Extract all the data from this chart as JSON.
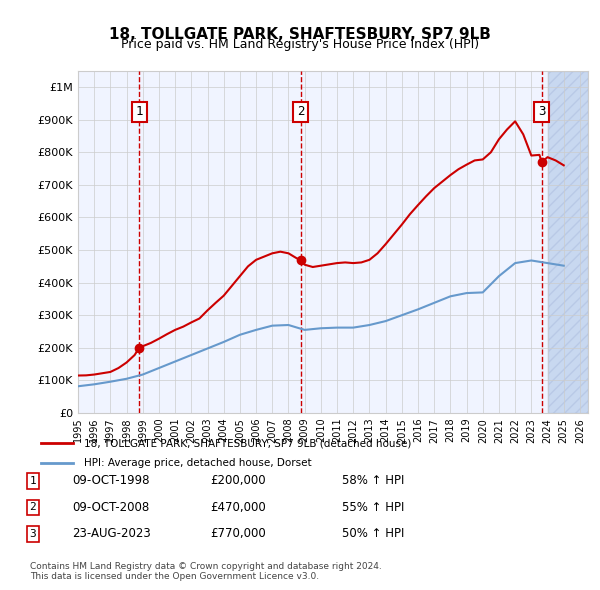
{
  "title": "18, TOLLGATE PARK, SHAFTESBURY, SP7 9LB",
  "subtitle": "Price paid vs. HM Land Registry's House Price Index (HPI)",
  "legend_line1": "18, TOLLGATE PARK, SHAFTESBURY, SP7 9LB (detached house)",
  "legend_line2": "HPI: Average price, detached house, Dorset",
  "footnote1": "Contains HM Land Registry data © Crown copyright and database right 2024.",
  "footnote2": "This data is licensed under the Open Government Licence v3.0.",
  "sale_labels": [
    "1",
    "2",
    "3"
  ],
  "sale_dates_label": [
    "09-OCT-1998",
    "09-OCT-2008",
    "23-AUG-2023"
  ],
  "sale_prices_label": [
    "£200,000",
    "£470,000",
    "£770,000"
  ],
  "sale_hpi_label": [
    "58% ↑ HPI",
    "55% ↑ HPI",
    "50% ↑ HPI"
  ],
  "sale_years": [
    1998.77,
    2008.77,
    2023.64
  ],
  "sale_prices": [
    200000,
    470000,
    770000
  ],
  "background_color": "#f0f4ff",
  "hatch_color": "#c8d8f0",
  "red_line_color": "#cc0000",
  "blue_line_color": "#6699cc",
  "vline_color": "#cc0000",
  "grid_color": "#cccccc",
  "ylim": [
    0,
    1050000
  ],
  "xlim_start": 1995.0,
  "xlim_end": 2026.5,
  "yticks": [
    0,
    100000,
    200000,
    300000,
    400000,
    500000,
    600000,
    700000,
    800000,
    900000,
    1000000
  ],
  "ytick_labels": [
    "£0",
    "£100K",
    "£200K",
    "£300K",
    "£400K",
    "£500K",
    "£600K",
    "£700K",
    "£800K",
    "£900K",
    "£1M"
  ],
  "xtick_years": [
    1995,
    1996,
    1997,
    1998,
    1999,
    2000,
    2001,
    2002,
    2003,
    2004,
    2005,
    2006,
    2007,
    2008,
    2009,
    2010,
    2011,
    2012,
    2013,
    2014,
    2015,
    2016,
    2017,
    2018,
    2019,
    2020,
    2021,
    2022,
    2023,
    2024,
    2025,
    2026
  ],
  "hpi_years": [
    1995,
    1996,
    1997,
    1998,
    1999,
    2000,
    2001,
    2002,
    2003,
    2004,
    2005,
    2006,
    2007,
    2008,
    2009,
    2010,
    2011,
    2012,
    2013,
    2014,
    2015,
    2016,
    2017,
    2018,
    2019,
    2020,
    2021,
    2022,
    2023,
    2024,
    2025
  ],
  "hpi_values": [
    82000,
    88000,
    96000,
    105000,
    118000,
    138000,
    158000,
    178000,
    198000,
    218000,
    240000,
    255000,
    268000,
    270000,
    255000,
    260000,
    262000,
    262000,
    270000,
    282000,
    300000,
    318000,
    338000,
    358000,
    368000,
    370000,
    420000,
    460000,
    468000,
    460000,
    452000
  ],
  "red_years": [
    1995,
    1995.5,
    1996,
    1996.5,
    1997,
    1997.5,
    1998,
    1998.5,
    1998.77,
    1999,
    1999.5,
    2000,
    2000.5,
    2001,
    2001.5,
    2002,
    2002.5,
    2003,
    2003.5,
    2004,
    2004.5,
    2005,
    2005.5,
    2006,
    2006.5,
    2007,
    2007.5,
    2008,
    2008.5,
    2008.77,
    2009,
    2009.5,
    2010,
    2010.5,
    2011,
    2011.5,
    2012,
    2012.5,
    2013,
    2013.5,
    2014,
    2014.5,
    2015,
    2015.5,
    2016,
    2016.5,
    2017,
    2017.5,
    2018,
    2018.5,
    2019,
    2019.5,
    2020,
    2020.5,
    2021,
    2021.5,
    2022,
    2022.5,
    2023,
    2023.5,
    2023.64,
    2024,
    2024.5,
    2025
  ],
  "red_values": [
    115000,
    115500,
    118000,
    122000,
    126000,
    138000,
    155000,
    178000,
    200000,
    205000,
    215000,
    228000,
    242000,
    255000,
    265000,
    278000,
    290000,
    315000,
    338000,
    360000,
    390000,
    420000,
    450000,
    470000,
    480000,
    490000,
    495000,
    490000,
    475000,
    470000,
    455000,
    448000,
    452000,
    456000,
    460000,
    462000,
    460000,
    462000,
    470000,
    490000,
    518000,
    548000,
    578000,
    610000,
    638000,
    665000,
    690000,
    710000,
    730000,
    748000,
    762000,
    775000,
    778000,
    800000,
    840000,
    870000,
    895000,
    855000,
    790000,
    792000,
    770000,
    785000,
    775000,
    760000
  ]
}
